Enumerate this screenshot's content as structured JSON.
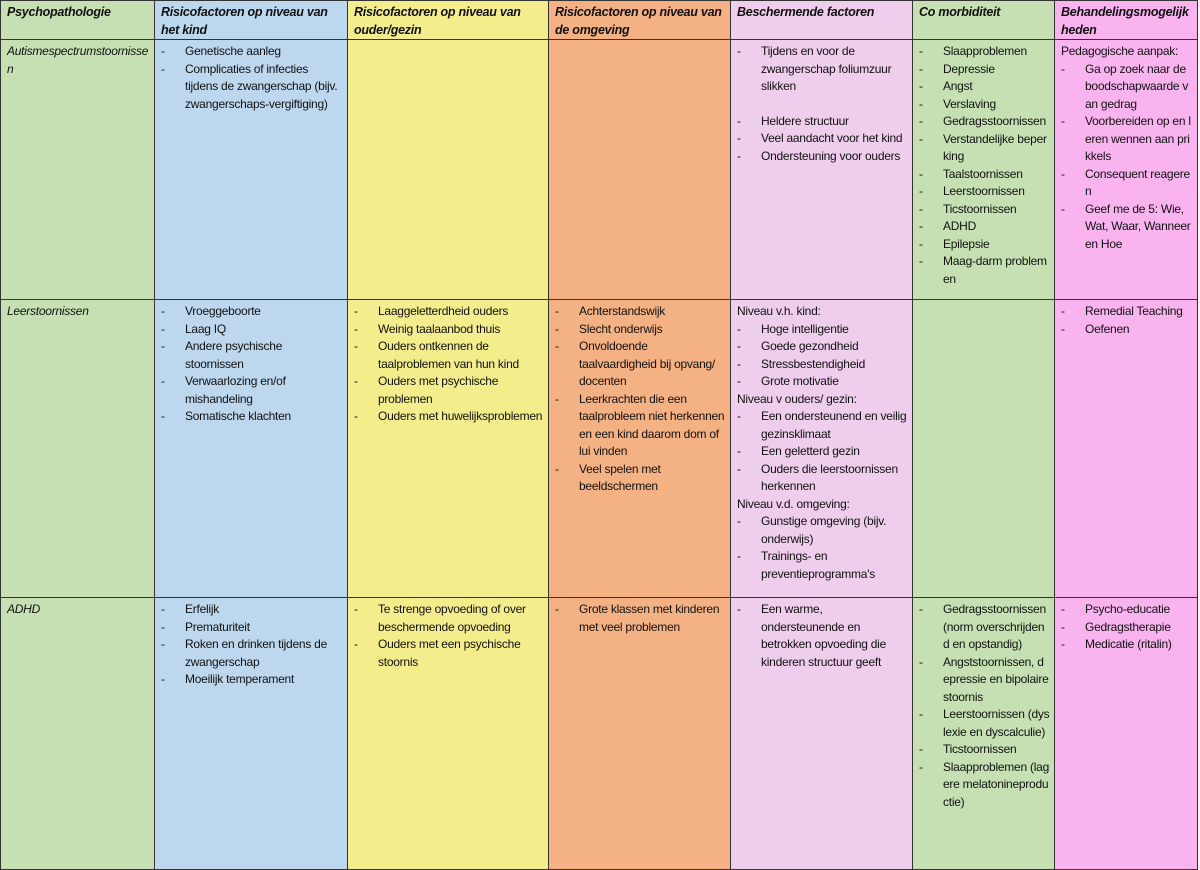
{
  "colors": {
    "psychopathologie": "#c6e0b4",
    "kind": "#bdd7ee",
    "ouder": "#f4ed8c",
    "omgeving": "#f4b183",
    "beschermend": "#efcdec",
    "comorbiditeit": "#c6e0b4",
    "behandeling": "#f9b4f0"
  },
  "headers": [
    "Psychopathologie",
    "Risicofactoren op niveau van het kind",
    "Risicofactoren op niveau van ouder/gezin",
    "Risicofactoren op niveau van de omgeving",
    "Beschermende factoren",
    "Co morbiditeit",
    "Behandelingsmogelijkheden"
  ],
  "rows": [
    {
      "name": "Autismespectrumstoornissen",
      "cells": [
        [
          {
            "text": "Genetische aanleg"
          },
          {
            "text": "Complicaties of infecties tijdens de zwangerschap (bijv. zwangerschaps-vergiftiging)"
          }
        ],
        [],
        [],
        [
          {
            "text": "Tijdens en voor de zwangerschap foliumzuur slikken"
          },
          {
            "text": "Heldere structuur",
            "blank_line_before": true
          },
          {
            "text": "Veel aandacht voor het kind"
          },
          {
            "text": "Ondersteuning voor ouders"
          }
        ],
        [
          {
            "text": "Slaapproblemen"
          },
          {
            "text": "Depressie"
          },
          {
            "text": "Angst"
          },
          {
            "text": "Verslaving"
          },
          {
            "text": "Gedragsstoornissen"
          },
          {
            "text": "Verstandelijke beperking"
          },
          {
            "text": "Taalstoornissen"
          },
          {
            "text": "Leerstoornissen"
          },
          {
            "text": "Ticstoornissen"
          },
          {
            "text": "ADHD"
          },
          {
            "text": "Epilepsie"
          },
          {
            "text": "Maag-darm problemen"
          }
        ],
        [
          {
            "text": "Pedagogische aanpak:",
            "label": true
          },
          {
            "text": "Ga op zoek naar de boodschapwaarde van gedrag"
          },
          {
            "text": "Voorbereiden op en leren wennen aan prikkels"
          },
          {
            "text": "Consequent reageren"
          },
          {
            "text": "Geef me de 5: Wie, Wat, Waar, Wanneer en Hoe"
          }
        ]
      ]
    },
    {
      "name": "Leerstoornissen",
      "cells": [
        [
          {
            "text": "Vroeggeboorte"
          },
          {
            "text": "Laag IQ"
          },
          {
            "text": "Andere psychische stoornissen"
          },
          {
            "text": "Verwaarlozing en/of mishandeling"
          },
          {
            "text": "Somatische klachten"
          }
        ],
        [
          {
            "text": "Laaggeletterdheid ouders"
          },
          {
            "text": "Weinig taalaanbod thuis"
          },
          {
            "text": "Ouders ontkennen de taalproblemen van hun kind"
          },
          {
            "text": "Ouders met psychische problemen"
          },
          {
            "text": "Ouders met huwelijksproblemen"
          }
        ],
        [
          {
            "text": "Achterstandswijk"
          },
          {
            "text": "Slecht onderwijs"
          },
          {
            "text": "Onvoldoende taalvaardigheid bij opvang/ docenten"
          },
          {
            "text": "Leerkrachten die een taalprobleem niet herkennen en een kind daarom dom of lui vinden"
          },
          {
            "text": "Veel spelen met beeldschermen"
          }
        ],
        [
          {
            "text": "Niveau v.h. kind:",
            "label": true
          },
          {
            "text": "Hoge intelligentie"
          },
          {
            "text": "Goede gezondheid"
          },
          {
            "text": "Stressbestendigheid"
          },
          {
            "text": "Grote motivatie"
          },
          {
            "text": "Niveau v ouders/ gezin:",
            "label": true
          },
          {
            "text": "Een ondersteunend en veilig gezinsklimaat"
          },
          {
            "text": "Een geletterd gezin"
          },
          {
            "text": "Ouders die leerstoornissen herkennen"
          },
          {
            "text": "Niveau v.d. omgeving:",
            "label": true
          },
          {
            "text": "Gunstige omgeving (bijv. onderwijs)"
          },
          {
            "text": "Trainings- en preventieprogramma's"
          }
        ],
        [],
        [
          {
            "text": "Remedial Teaching"
          },
          {
            "text": "Oefenen"
          }
        ]
      ]
    },
    {
      "name": "ADHD",
      "cells": [
        [
          {
            "text": "Erfelijk"
          },
          {
            "text": "Prematuriteit"
          },
          {
            "text": "Roken en drinken tijdens de zwangerschap"
          },
          {
            "text": "Moeilijk temperament"
          }
        ],
        [
          {
            "text": "Te strenge opvoeding of over beschermende opvoeding"
          },
          {
            "text": "Ouders met een psychische stoornis"
          }
        ],
        [
          {
            "text": "Grote klassen met kinderen met veel problemen"
          }
        ],
        [
          {
            "text": "Een warme, ondersteunende en betrokken opvoeding die kinderen structuur geeft"
          }
        ],
        [
          {
            "text": "Gedragsstoornissen (norm overschrijdend en opstandig)"
          },
          {
            "text": "Angststoornissen, depressie en bipolaire stoornis"
          },
          {
            "text": "Leerstoornissen (dyslexie en dyscalculie)"
          },
          {
            "text": "Ticstoornissen"
          },
          {
            "text": "Slaapproblemen (lagere melatonineproductie)"
          }
        ],
        [
          {
            "text": "Psycho-educatie"
          },
          {
            "text": "Gedragstherapie"
          },
          {
            "text": "Medicatie (ritalin)"
          }
        ]
      ]
    }
  ]
}
